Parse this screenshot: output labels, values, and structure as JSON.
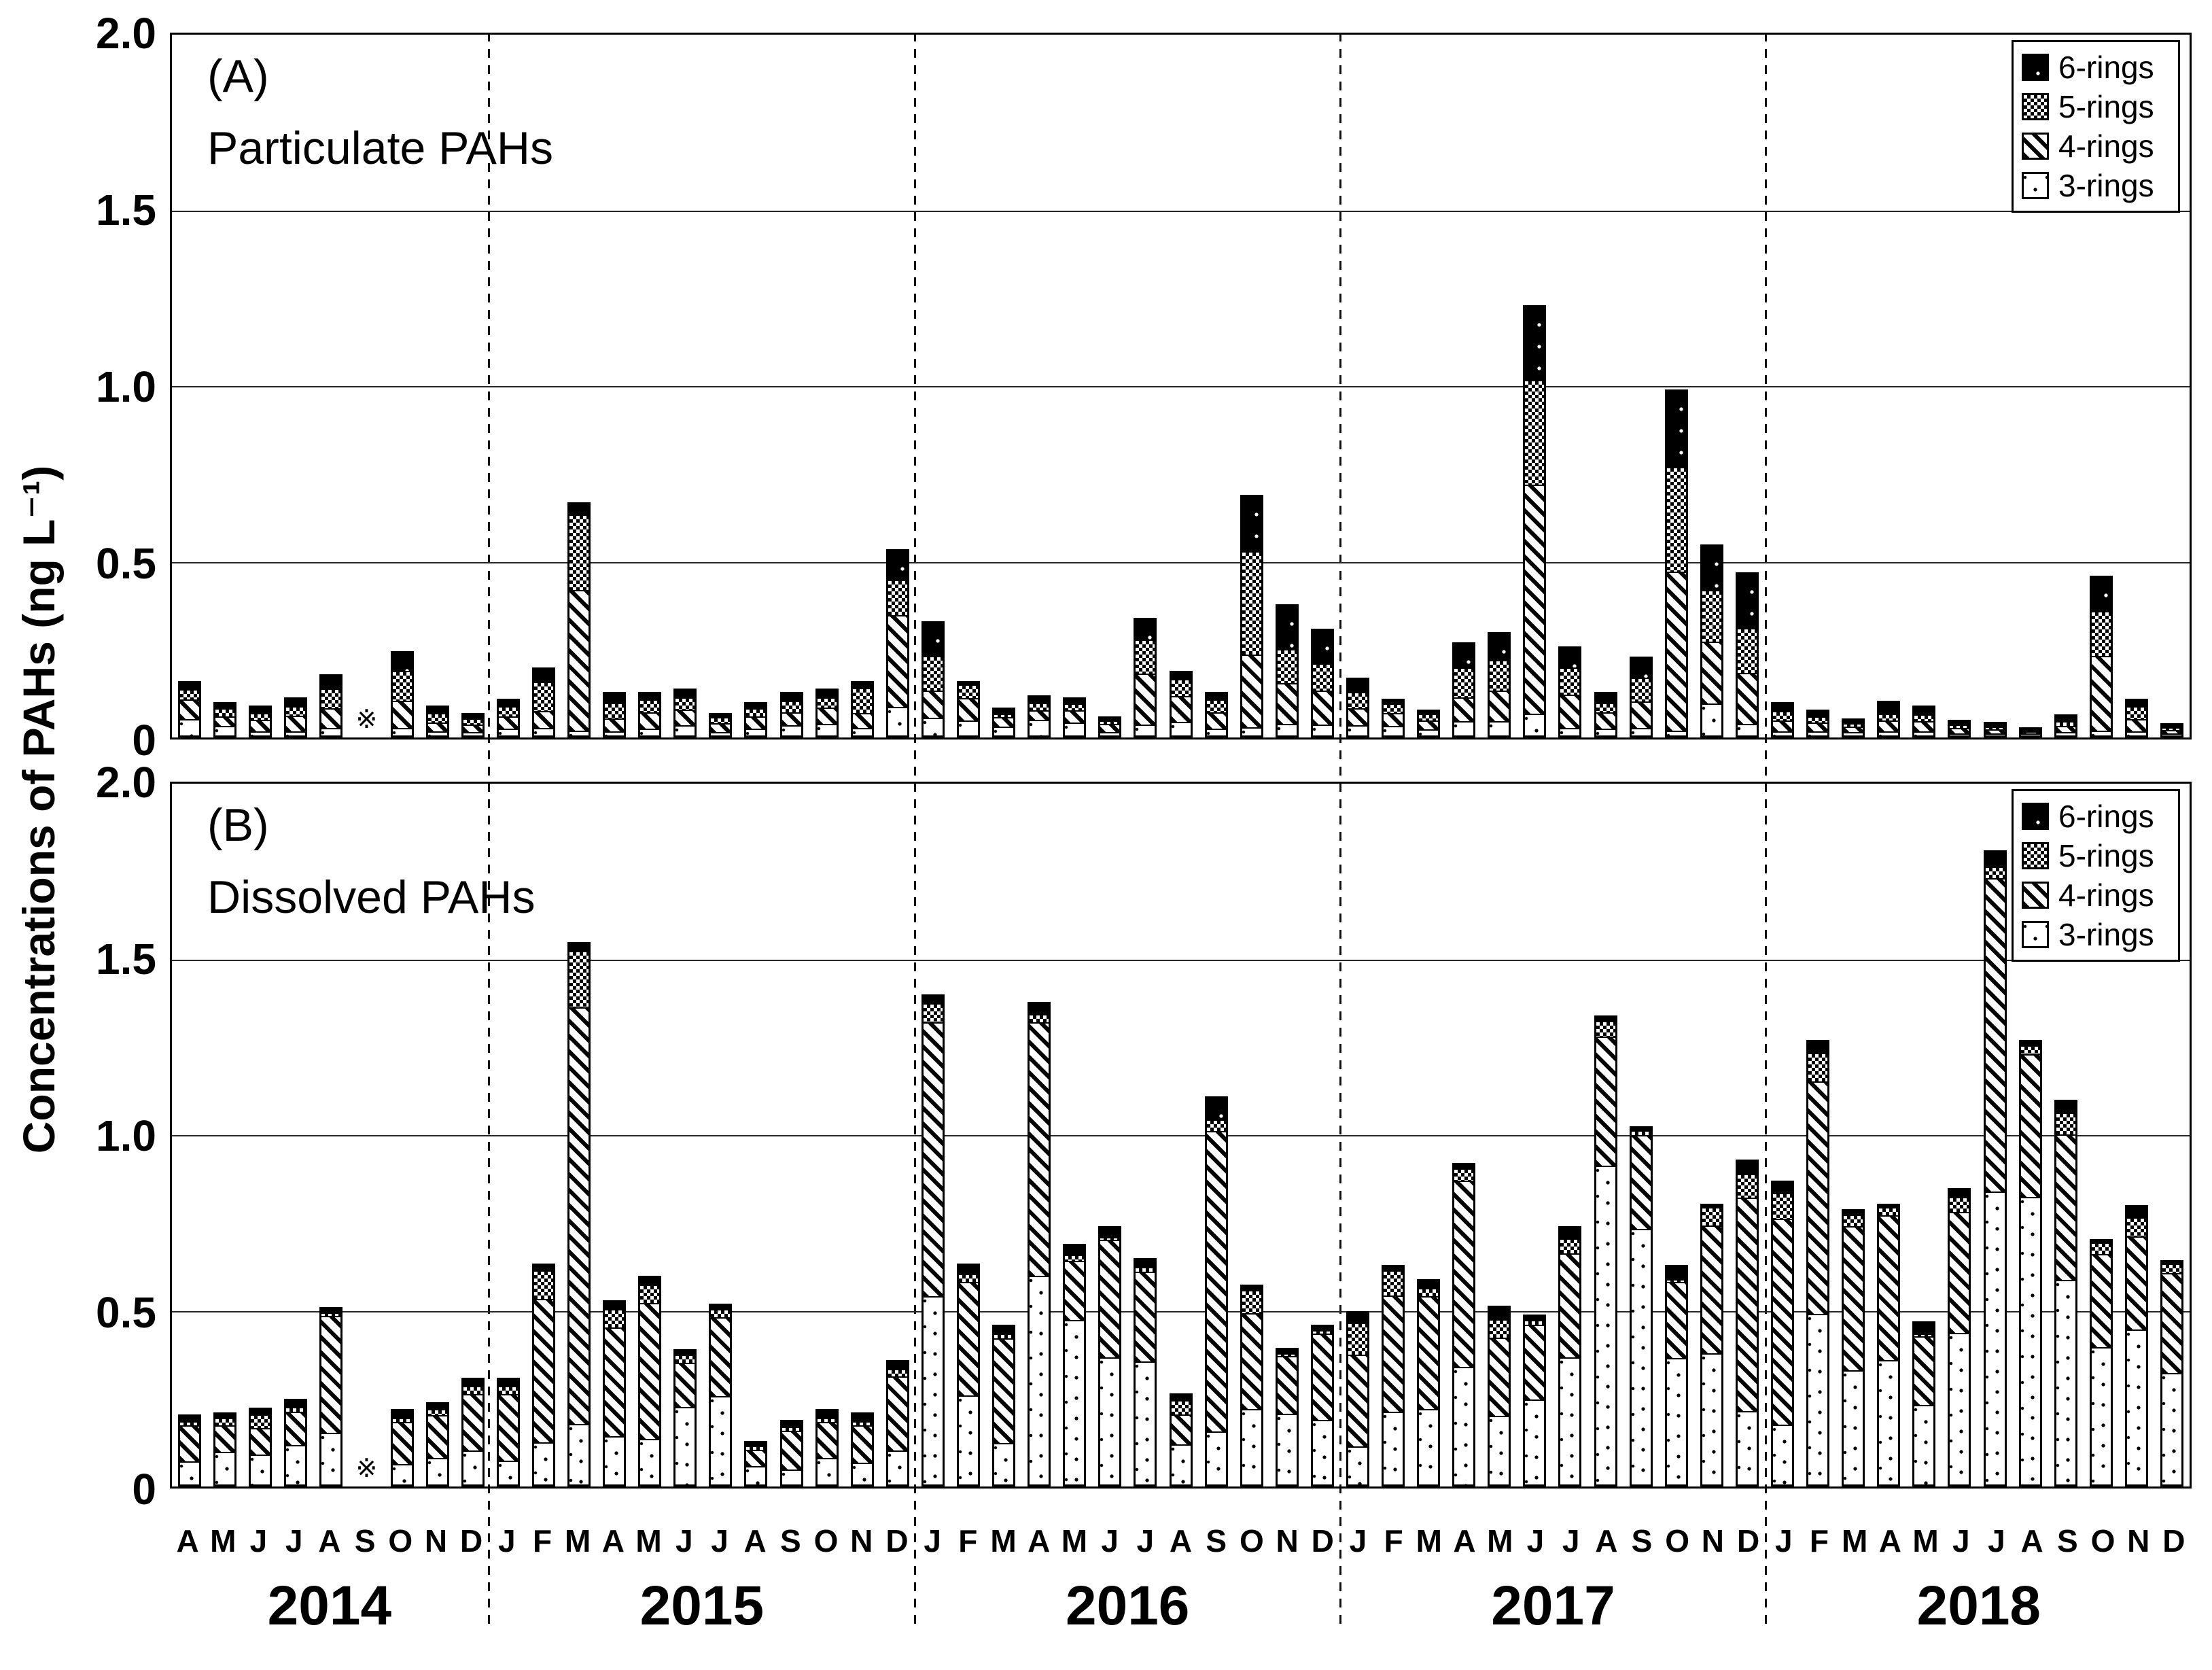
{
  "figure": {
    "y_axis_title": "Concentrations of PAHs (ng L⁻¹)",
    "missing_marker": "※",
    "colors": {
      "ink": "#000000",
      "background": "#ffffff"
    }
  },
  "legend": {
    "items": [
      {
        "label": "6-rings",
        "pattern": "p6"
      },
      {
        "label": "5-rings",
        "pattern": "p5"
      },
      {
        "label": "4-rings",
        "pattern": "p4"
      },
      {
        "label": "3-rings",
        "pattern": "p3"
      }
    ]
  },
  "panels": [
    {
      "id": "A",
      "corner_label": "(A)",
      "title": "Particulate PAHs",
      "ytick_labels": [
        "2.0",
        "1.5",
        "1.0",
        "0.5",
        "0"
      ]
    },
    {
      "id": "B",
      "corner_label": "(B)",
      "title": "Dissolved PAHs",
      "ytick_labels": [
        "2.0",
        "1.5",
        "1.0",
        "0.5",
        "0"
      ]
    }
  ],
  "x_axis": {
    "years": [
      {
        "label": "2014",
        "months": [
          "A",
          "M",
          "J",
          "J",
          "A",
          "S",
          "O",
          "N",
          "D"
        ]
      },
      {
        "label": "2015",
        "months": [
          "J",
          "F",
          "M",
          "A",
          "M",
          "J",
          "J",
          "A",
          "S",
          "O",
          "N",
          "D"
        ]
      },
      {
        "label": "2016",
        "months": [
          "J",
          "F",
          "M",
          "A",
          "M",
          "J",
          "J",
          "A",
          "S",
          "O",
          "N",
          "D"
        ]
      },
      {
        "label": "2017",
        "months": [
          "J",
          "F",
          "M",
          "A",
          "M",
          "J",
          "J",
          "A",
          "S",
          "O",
          "N",
          "D"
        ]
      },
      {
        "label": "2018",
        "months": [
          "J",
          "F",
          "M",
          "A",
          "M",
          "J",
          "J",
          "A",
          "S",
          "O",
          "N",
          "D"
        ]
      }
    ]
  },
  "chart_data": [
    {
      "type": "bar",
      "stacked": true,
      "panel": "A",
      "title": "Particulate PAHs",
      "xlabel": "",
      "ylabel": "Concentrations of PAHs (ng L⁻¹)",
      "ylim": [
        0,
        2.0
      ],
      "yticks": [
        2.0,
        1.5,
        1.0,
        0.5,
        0
      ],
      "grid": "horizontal",
      "legend_position": "top-right",
      "missing_categories": [
        "2014-09"
      ],
      "categories": [
        "2014-04",
        "2014-05",
        "2014-06",
        "2014-07",
        "2014-08",
        "2014-09",
        "2014-10",
        "2014-11",
        "2014-12",
        "2015-01",
        "2015-02",
        "2015-03",
        "2015-04",
        "2015-05",
        "2015-06",
        "2015-07",
        "2015-08",
        "2015-09",
        "2015-10",
        "2015-11",
        "2015-12",
        "2016-01",
        "2016-02",
        "2016-03",
        "2016-04",
        "2016-05",
        "2016-06",
        "2016-07",
        "2016-08",
        "2016-09",
        "2016-10",
        "2016-11",
        "2016-12",
        "2017-01",
        "2017-02",
        "2017-03",
        "2017-04",
        "2017-05",
        "2017-06",
        "2017-07",
        "2017-08",
        "2017-09",
        "2017-10",
        "2017-11",
        "2017-12",
        "2018-01",
        "2018-02",
        "2018-03",
        "2018-04",
        "2018-05",
        "2018-06",
        "2018-07",
        "2018-08",
        "2018-09",
        "2018-10",
        "2018-11",
        "2018-12"
      ],
      "series": [
        {
          "name": "3-rings",
          "pattern": "p3",
          "values": [
            0.05,
            0.03,
            0.01,
            0.01,
            0.02,
            null,
            0.02,
            0.01,
            0.01,
            0.02,
            0.02,
            0.01,
            0.01,
            0.02,
            0.03,
            0.01,
            0.02,
            0.03,
            0.035,
            0.02,
            0.08,
            0.05,
            0.045,
            0.03,
            0.05,
            0.04,
            0.01,
            0.03,
            0.04,
            0.02,
            0.02,
            0.03,
            0.03,
            0.03,
            0.03,
            0.02,
            0.04,
            0.04,
            0.06,
            0.02,
            0.02,
            0.02,
            0.01,
            0.09,
            0.03,
            0.01,
            0.01,
            0.01,
            0.01,
            0.01,
            0.005,
            0.005,
            0.005,
            0.01,
            0.01,
            0.01,
            0.005
          ]
        },
        {
          "name": "4-rings",
          "pattern": "p4",
          "values": [
            0.06,
            0.03,
            0.04,
            0.05,
            0.06,
            null,
            0.08,
            0.03,
            0.025,
            0.04,
            0.05,
            0.41,
            0.04,
            0.05,
            0.05,
            0.03,
            0.04,
            0.04,
            0.05,
            0.045,
            0.27,
            0.08,
            0.07,
            0.03,
            0.03,
            0.04,
            0.03,
            0.15,
            0.08,
            0.05,
            0.21,
            0.12,
            0.1,
            0.05,
            0.04,
            0.03,
            0.07,
            0.09,
            0.66,
            0.1,
            0.05,
            0.08,
            0.46,
            0.18,
            0.15,
            0.035,
            0.03,
            0.02,
            0.035,
            0.035,
            0.02,
            0.015,
            0.01,
            0.02,
            0.22,
            0.04,
            0.015
          ]
        },
        {
          "name": "5-rings",
          "pattern": "p5",
          "values": [
            0.03,
            0.025,
            0.02,
            0.03,
            0.06,
            null,
            0.09,
            0.03,
            0.02,
            0.03,
            0.09,
            0.22,
            0.05,
            0.04,
            0.035,
            0.02,
            0.025,
            0.035,
            0.03,
            0.08,
            0.1,
            0.1,
            0.04,
            0.01,
            0.02,
            0.02,
            0.01,
            0.1,
            0.05,
            0.04,
            0.3,
            0.1,
            0.08,
            0.05,
            0.03,
            0.02,
            0.09,
            0.09,
            0.3,
            0.08,
            0.03,
            0.07,
            0.3,
            0.15,
            0.13,
            0.03,
            0.02,
            0.01,
            0.02,
            0.02,
            0.01,
            0.01,
            0.005,
            0.015,
            0.13,
            0.04,
            0.01
          ]
        },
        {
          "name": "6-rings",
          "pattern": "p6",
          "values": [
            0.02,
            0.015,
            0.02,
            0.025,
            0.04,
            null,
            0.055,
            0.02,
            0.015,
            0.02,
            0.04,
            0.03,
            0.03,
            0.02,
            0.025,
            0.01,
            0.015,
            0.025,
            0.025,
            0.015,
            0.085,
            0.1,
            0.005,
            0.015,
            0.02,
            0.015,
            0.01,
            0.06,
            0.02,
            0.02,
            0.16,
            0.13,
            0.1,
            0.04,
            0.01,
            0.01,
            0.07,
            0.08,
            0.21,
            0.06,
            0.03,
            0.06,
            0.22,
            0.13,
            0.16,
            0.025,
            0.02,
            0.015,
            0.04,
            0.025,
            0.015,
            0.015,
            0.01,
            0.02,
            0.1,
            0.02,
            0.01
          ]
        }
      ]
    },
    {
      "type": "bar",
      "stacked": true,
      "panel": "B",
      "title": "Dissolved PAHs",
      "xlabel": "",
      "ylabel": "Concentrations of PAHs (ng L⁻¹)",
      "ylim": [
        0,
        2.0
      ],
      "yticks": [
        2.0,
        1.5,
        1.0,
        0.5,
        0
      ],
      "grid": "horizontal",
      "legend_position": "top-right",
      "missing_categories": [
        "2014-09"
      ],
      "categories": [
        "2014-04",
        "2014-05",
        "2014-06",
        "2014-07",
        "2014-08",
        "2014-09",
        "2014-10",
        "2014-11",
        "2014-12",
        "2015-01",
        "2015-02",
        "2015-03",
        "2015-04",
        "2015-05",
        "2015-06",
        "2015-07",
        "2015-08",
        "2015-09",
        "2015-10",
        "2015-11",
        "2015-12",
        "2016-01",
        "2016-02",
        "2016-03",
        "2016-04",
        "2016-05",
        "2016-06",
        "2016-07",
        "2016-08",
        "2016-09",
        "2016-10",
        "2016-11",
        "2016-12",
        "2017-01",
        "2017-02",
        "2017-03",
        "2017-04",
        "2017-05",
        "2017-06",
        "2017-07",
        "2017-08",
        "2017-09",
        "2017-10",
        "2017-11",
        "2017-12",
        "2018-01",
        "2018-02",
        "2018-03",
        "2018-04",
        "2018-05",
        "2018-06",
        "2018-07",
        "2018-08",
        "2018-09",
        "2018-10",
        "2018-11",
        "2018-12"
      ],
      "series": [
        {
          "name": "3-rings",
          "pattern": "p3",
          "values": [
            0.07,
            0.1,
            0.09,
            0.12,
            0.15,
            null,
            0.06,
            0.08,
            0.1,
            0.07,
            0.12,
            0.17,
            0.14,
            0.13,
            0.23,
            0.26,
            0.06,
            0.045,
            0.08,
            0.065,
            0.1,
            0.54,
            0.26,
            0.12,
            0.6,
            0.48,
            0.37,
            0.36,
            0.12,
            0.15,
            0.22,
            0.21,
            0.19,
            0.11,
            0.21,
            0.22,
            0.34,
            0.2,
            0.25,
            0.37,
            0.92,
            0.74,
            0.37,
            0.38,
            0.21,
            0.17,
            0.49,
            0.33,
            0.36,
            0.235,
            0.44,
            0.84,
            0.83,
            0.59,
            0.4,
            0.45,
            0.325
          ]
        },
        {
          "name": "4-rings",
          "pattern": "p4",
          "values": [
            0.11,
            0.08,
            0.08,
            0.1,
            0.345,
            null,
            0.13,
            0.13,
            0.17,
            0.2,
            0.42,
            1.2,
            0.32,
            0.4,
            0.13,
            0.23,
            0.05,
            0.12,
            0.11,
            0.115,
            0.22,
            0.79,
            0.33,
            0.31,
            0.73,
            0.17,
            0.34,
            0.26,
            0.09,
            0.87,
            0.28,
            0.17,
            0.255,
            0.27,
            0.34,
            0.33,
            0.54,
            0.23,
            0.22,
            0.3,
            0.37,
            0.27,
            0.22,
            0.37,
            0.62,
            0.6,
            0.67,
            0.42,
            0.42,
            0.2,
            0.35,
            0.9,
            0.41,
            0.42,
            0.27,
            0.27,
            0.29
          ]
        },
        {
          "name": "5-rings",
          "pattern": "p5",
          "values": [
            0.01,
            0.02,
            0.04,
            0.01,
            0.005,
            null,
            0.01,
            0.015,
            0.02,
            0.02,
            0.08,
            0.16,
            0.05,
            0.05,
            0.02,
            0.02,
            0.01,
            0.01,
            0.01,
            0.01,
            0.02,
            0.05,
            0.02,
            0.01,
            0.02,
            0.015,
            0.005,
            0.01,
            0.04,
            0.03,
            0.065,
            0.005,
            0.005,
            0.09,
            0.07,
            0.02,
            0.03,
            0.05,
            0.01,
            0.04,
            0.04,
            0.01,
            0.005,
            0.05,
            0.065,
            0.07,
            0.08,
            0.03,
            0.02,
            0.005,
            0.04,
            0.03,
            0.02,
            0.06,
            0.03,
            0.05,
            0.025
          ]
        },
        {
          "name": "6-rings",
          "pattern": "p6",
          "values": [
            0.015,
            0.01,
            0.015,
            0.02,
            0.01,
            null,
            0.02,
            0.015,
            0.02,
            0.02,
            0.015,
            0.02,
            0.02,
            0.02,
            0.01,
            0.01,
            0.01,
            0.015,
            0.02,
            0.02,
            0.02,
            0.02,
            0.025,
            0.02,
            0.03,
            0.025,
            0.025,
            0.02,
            0.015,
            0.06,
            0.01,
            0.01,
            0.01,
            0.03,
            0.01,
            0.02,
            0.01,
            0.035,
            0.01,
            0.03,
            0.01,
            0.005,
            0.035,
            0.005,
            0.035,
            0.03,
            0.03,
            0.01,
            0.005,
            0.03,
            0.02,
            0.04,
            0.01,
            0.03,
            0.005,
            0.03,
            0.005
          ]
        }
      ]
    }
  ]
}
